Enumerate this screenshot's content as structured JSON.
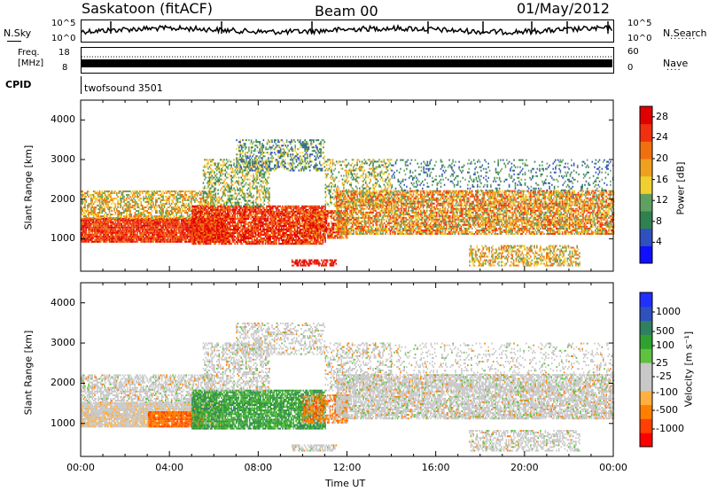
{
  "header": {
    "station": "Saskatoon (fitACF)",
    "beam": "Beam 00",
    "date": "01/May/2012"
  },
  "strip_panels": {
    "nsky_label": "N.Sky",
    "nsky_ticks": [
      "10^5",
      "10^0"
    ],
    "nsearch_label": "N.Search",
    "nsearch_ticks": [
      "10^5",
      "10^0"
    ],
    "freq_label_line1": "Freq.",
    "freq_label_line2": "[MHz]",
    "freq_ticks": [
      "18",
      "8"
    ],
    "nave_label": "Nave",
    "nave_ticks": [
      "60",
      "0"
    ],
    "cpid_label": "CPID",
    "cpid_value": "twofsound 3501"
  },
  "colors": {
    "power_scale": [
      "#1010ff",
      "#3050c0",
      "#308050",
      "#60a060",
      "#f0d030",
      "#f0a020",
      "#f07010",
      "#f03010",
      "#e00000"
    ],
    "velocity_scale": [
      "#ff0000",
      "#ff4000",
      "#ff8000",
      "#ffb040",
      "#c8c8c8",
      "#c8c8c8",
      "#60c040",
      "#30a030",
      "#308060",
      "#3050c0",
      "#2030ff"
    ]
  },
  "chart_data": [
    {
      "type": "heatmap",
      "name": "power",
      "xlabel": "",
      "ylabel": "Slant Range [km]",
      "x_ticks": [
        "00:00",
        "04:00",
        "08:00",
        "12:00",
        "16:00",
        "20:00",
        "00:00"
      ],
      "xlim_hours": [
        0,
        24
      ],
      "y_ticks": [
        1000,
        2000,
        3000,
        4000
      ],
      "ylim": [
        180,
        4500
      ],
      "colorbar_label": "Power [dB]",
      "colorbar_ticks": [
        4,
        8,
        12,
        16,
        20,
        24,
        28
      ],
      "colorbar_range": [
        0,
        30
      ]
    },
    {
      "type": "heatmap",
      "name": "velocity",
      "xlabel": "Time UT",
      "ylabel": "Slant Range [km]",
      "x_ticks": [
        "00:00",
        "04:00",
        "08:00",
        "12:00",
        "16:00",
        "20:00",
        "00:00"
      ],
      "xlim_hours": [
        0,
        24
      ],
      "y_ticks": [
        1000,
        2000,
        3000,
        4000
      ],
      "ylim": [
        180,
        4500
      ],
      "colorbar_label": "Velocity [m s⁻¹]",
      "colorbar_ticks": [
        1000,
        500,
        100,
        25,
        -25,
        -100,
        -500,
        -1000
      ]
    }
  ]
}
